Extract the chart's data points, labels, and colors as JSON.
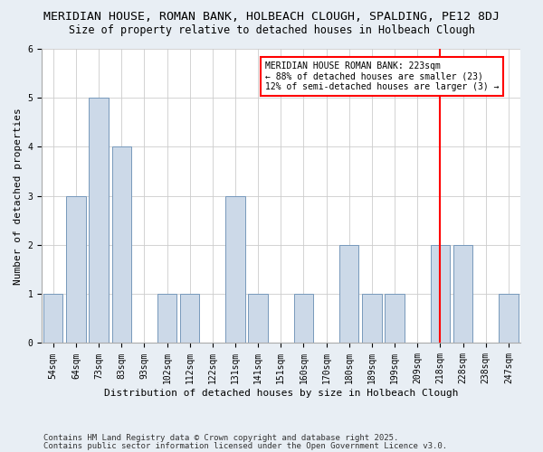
{
  "title1": "MERIDIAN HOUSE, ROMAN BANK, HOLBEACH CLOUGH, SPALDING, PE12 8DJ",
  "title2": "Size of property relative to detached houses in Holbeach Clough",
  "xlabel": "Distribution of detached houses by size in Holbeach Clough",
  "ylabel": "Number of detached properties",
  "categories": [
    "54sqm",
    "64sqm",
    "73sqm",
    "83sqm",
    "93sqm",
    "102sqm",
    "112sqm",
    "122sqm",
    "131sqm",
    "141sqm",
    "151sqm",
    "160sqm",
    "170sqm",
    "180sqm",
    "189sqm",
    "199sqm",
    "209sqm",
    "218sqm",
    "228sqm",
    "238sqm",
    "247sqm"
  ],
  "values": [
    1,
    3,
    5,
    4,
    0,
    1,
    1,
    0,
    3,
    1,
    0,
    1,
    0,
    2,
    1,
    1,
    0,
    2,
    2,
    0,
    1
  ],
  "bar_color": "#ccd9e8",
  "bar_edge_color": "#7799bb",
  "vline_x_index": 17,
  "vline_color": "red",
  "annotation_text": "MERIDIAN HOUSE ROMAN BANK: 223sqm\n← 88% of detached houses are smaller (23)\n12% of semi-detached houses are larger (3) →",
  "annotation_box_color": "white",
  "annotation_box_edge_color": "red",
  "ylim": [
    0,
    6
  ],
  "yticks": [
    0,
    1,
    2,
    3,
    4,
    5,
    6
  ],
  "footnote1": "Contains HM Land Registry data © Crown copyright and database right 2025.",
  "footnote2": "Contains public sector information licensed under the Open Government Licence v3.0.",
  "bg_color": "#e8eef4",
  "plot_bg_color": "#ffffff",
  "grid_color": "#cccccc",
  "title1_fontsize": 9.5,
  "title2_fontsize": 8.5,
  "axis_label_fontsize": 8,
  "tick_fontsize": 7,
  "annot_fontsize": 7,
  "footnote_fontsize": 6.5
}
